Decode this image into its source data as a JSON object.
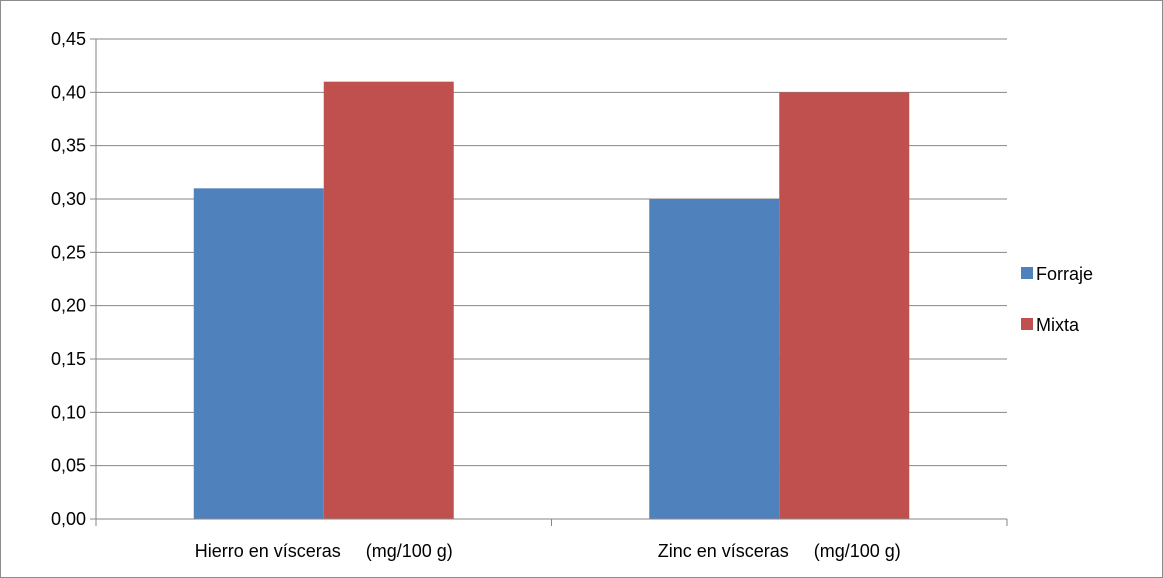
{
  "chart_data": {
    "type": "bar",
    "title": "",
    "xlabel": "",
    "ylabel": "",
    "categories": [
      "Hierro en vísceras     (mg/100 g)",
      "Zinc en vísceras     (mg/100 g)"
    ],
    "series": [
      {
        "name": "Forraje",
        "values": [
          0.31,
          0.3
        ],
        "color": "#4f81bd"
      },
      {
        "name": "Mixta",
        "values": [
          0.41,
          0.4
        ],
        "color": "#c0504d"
      }
    ],
    "ylim": [
      0,
      0.45
    ],
    "yticks": [
      "0,00",
      "0,05",
      "0,10",
      "0,15",
      "0,20",
      "0,25",
      "0,30",
      "0,35",
      "0,40",
      "0,45"
    ],
    "grid": true,
    "legend_position": "right"
  }
}
